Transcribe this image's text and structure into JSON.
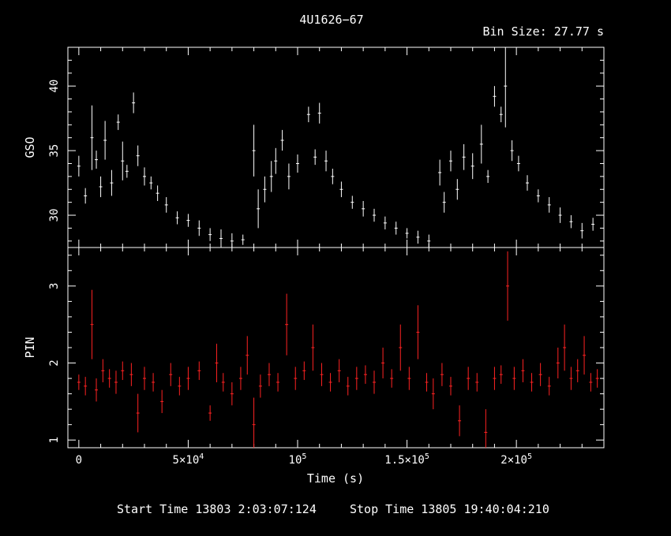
{
  "chart_data": {
    "type": "scatter",
    "title": "4U1626−67",
    "bin_size": "Bin Size: 27.77 s",
    "xlabel": "Time (s)",
    "xlim": [
      -5000,
      240000
    ],
    "x_ticks": [
      {
        "value": 0,
        "label": "0",
        "exp": ""
      },
      {
        "value": 50000,
        "label": "5×10",
        "exp": "4"
      },
      {
        "value": 100000,
        "label": "10",
        "exp": "5"
      },
      {
        "value": 150000,
        "label": "1.5×10",
        "exp": "5"
      },
      {
        "value": 200000,
        "label": "2×10",
        "exp": "5"
      }
    ],
    "footer": {
      "start": "Start Time 13803  2:03:07:124",
      "stop": "Stop Time 13805 19:40:04:210"
    },
    "panels": [
      {
        "name": "gso",
        "ylabel": "GSO",
        "ylim": [
          27.5,
          43.0
        ],
        "yticks": [
          30,
          35,
          40
        ],
        "color": "#ffffff",
        "series": [
          {
            "x": 0,
            "y": 33.8,
            "err": 0.8
          },
          {
            "x": 3000,
            "y": 31.5,
            "err": 0.6
          },
          {
            "x": 6000,
            "y": 36.0,
            "err": 2.5
          },
          {
            "x": 8000,
            "y": 34.3,
            "err": 0.7
          },
          {
            "x": 10000,
            "y": 32.2,
            "err": 0.8
          },
          {
            "x": 12000,
            "y": 35.8,
            "err": 1.5
          },
          {
            "x": 15000,
            "y": 32.5,
            "err": 1.0
          },
          {
            "x": 18000,
            "y": 37.2,
            "err": 0.6
          },
          {
            "x": 20000,
            "y": 34.2,
            "err": 1.5
          },
          {
            "x": 22000,
            "y": 33.4,
            "err": 0.5
          },
          {
            "x": 25000,
            "y": 38.7,
            "err": 0.8
          },
          {
            "x": 27000,
            "y": 34.6,
            "err": 0.8
          },
          {
            "x": 30000,
            "y": 33.0,
            "err": 0.7
          },
          {
            "x": 33000,
            "y": 32.5,
            "err": 0.5
          },
          {
            "x": 36000,
            "y": 31.7,
            "err": 0.6
          },
          {
            "x": 40000,
            "y": 30.8,
            "err": 0.6
          },
          {
            "x": 45000,
            "y": 29.8,
            "err": 0.5
          },
          {
            "x": 50000,
            "y": 29.6,
            "err": 0.5
          },
          {
            "x": 55000,
            "y": 29.0,
            "err": 0.6
          },
          {
            "x": 60000,
            "y": 28.5,
            "err": 0.5
          },
          {
            "x": 65000,
            "y": 28.2,
            "err": 0.7
          },
          {
            "x": 70000,
            "y": 28.0,
            "err": 0.6
          },
          {
            "x": 75000,
            "y": 28.1,
            "err": 0.4
          },
          {
            "x": 80000,
            "y": 35.0,
            "err": 2.0
          },
          {
            "x": 82000,
            "y": 30.5,
            "err": 1.5
          },
          {
            "x": 85000,
            "y": 32.0,
            "err": 1.0
          },
          {
            "x": 88000,
            "y": 33.0,
            "err": 1.2
          },
          {
            "x": 90000,
            "y": 34.2,
            "err": 1.0
          },
          {
            "x": 93000,
            "y": 35.8,
            "err": 0.8
          },
          {
            "x": 96000,
            "y": 33.0,
            "err": 1.0
          },
          {
            "x": 100000,
            "y": 34.0,
            "err": 0.7
          },
          {
            "x": 105000,
            "y": 37.8,
            "err": 0.6
          },
          {
            "x": 108000,
            "y": 34.5,
            "err": 0.6
          },
          {
            "x": 110000,
            "y": 37.9,
            "err": 0.8
          },
          {
            "x": 113000,
            "y": 34.2,
            "err": 0.8
          },
          {
            "x": 116000,
            "y": 33.0,
            "err": 0.6
          },
          {
            "x": 120000,
            "y": 32.0,
            "err": 0.6
          },
          {
            "x": 125000,
            "y": 31.0,
            "err": 0.5
          },
          {
            "x": 130000,
            "y": 30.5,
            "err": 0.6
          },
          {
            "x": 135000,
            "y": 30.0,
            "err": 0.5
          },
          {
            "x": 140000,
            "y": 29.4,
            "err": 0.5
          },
          {
            "x": 145000,
            "y": 29.0,
            "err": 0.5
          },
          {
            "x": 150000,
            "y": 28.6,
            "err": 0.4
          },
          {
            "x": 155000,
            "y": 28.3,
            "err": 0.5
          },
          {
            "x": 160000,
            "y": 28.0,
            "err": 0.5
          },
          {
            "x": 165000,
            "y": 33.3,
            "err": 1.0
          },
          {
            "x": 167000,
            "y": 31.0,
            "err": 0.8
          },
          {
            "x": 170000,
            "y": 34.2,
            "err": 0.8
          },
          {
            "x": 173000,
            "y": 32.0,
            "err": 0.8
          },
          {
            "x": 176000,
            "y": 34.5,
            "err": 1.0
          },
          {
            "x": 180000,
            "y": 33.8,
            "err": 1.0
          },
          {
            "x": 184000,
            "y": 35.5,
            "err": 1.5
          },
          {
            "x": 187000,
            "y": 33.0,
            "err": 0.5
          },
          {
            "x": 190000,
            "y": 39.2,
            "err": 0.8
          },
          {
            "x": 193000,
            "y": 37.8,
            "err": 0.6
          },
          {
            "x": 195000,
            "y": 40.0,
            "err": 3.2
          },
          {
            "x": 198000,
            "y": 35.0,
            "err": 0.8
          },
          {
            "x": 201000,
            "y": 34.0,
            "err": 0.6
          },
          {
            "x": 205000,
            "y": 32.5,
            "err": 0.6
          },
          {
            "x": 210000,
            "y": 31.5,
            "err": 0.5
          },
          {
            "x": 215000,
            "y": 30.8,
            "err": 0.6
          },
          {
            "x": 220000,
            "y": 30.0,
            "err": 0.6
          },
          {
            "x": 225000,
            "y": 29.5,
            "err": 0.5
          },
          {
            "x": 230000,
            "y": 28.8,
            "err": 0.6
          },
          {
            "x": 235000,
            "y": 29.3,
            "err": 0.5
          }
        ]
      },
      {
        "name": "pin",
        "ylabel": "PIN",
        "ylim": [
          0.9,
          3.5
        ],
        "yticks": [
          1,
          2,
          3
        ],
        "color": "#ff2222",
        "series": [
          {
            "x": 0,
            "y": 1.75,
            "err": 0.1
          },
          {
            "x": 3000,
            "y": 1.7,
            "err": 0.12
          },
          {
            "x": 6000,
            "y": 2.5,
            "err": 0.45
          },
          {
            "x": 8000,
            "y": 1.65,
            "err": 0.15
          },
          {
            "x": 11000,
            "y": 1.9,
            "err": 0.15
          },
          {
            "x": 14000,
            "y": 1.8,
            "err": 0.12
          },
          {
            "x": 17000,
            "y": 1.75,
            "err": 0.15
          },
          {
            "x": 20000,
            "y": 1.9,
            "err": 0.12
          },
          {
            "x": 24000,
            "y": 1.85,
            "err": 0.15
          },
          {
            "x": 27000,
            "y": 1.35,
            "err": 0.25
          },
          {
            "x": 30000,
            "y": 1.8,
            "err": 0.15
          },
          {
            "x": 34000,
            "y": 1.75,
            "err": 0.12
          },
          {
            "x": 38000,
            "y": 1.5,
            "err": 0.15
          },
          {
            "x": 42000,
            "y": 1.85,
            "err": 0.15
          },
          {
            "x": 46000,
            "y": 1.7,
            "err": 0.12
          },
          {
            "x": 50000,
            "y": 1.8,
            "err": 0.15
          },
          {
            "x": 55000,
            "y": 1.9,
            "err": 0.12
          },
          {
            "x": 60000,
            "y": 1.35,
            "err": 0.1
          },
          {
            "x": 63000,
            "y": 2.0,
            "err": 0.25
          },
          {
            "x": 66000,
            "y": 1.75,
            "err": 0.12
          },
          {
            "x": 70000,
            "y": 1.6,
            "err": 0.15
          },
          {
            "x": 74000,
            "y": 1.8,
            "err": 0.15
          },
          {
            "x": 77000,
            "y": 2.1,
            "err": 0.25
          },
          {
            "x": 80000,
            "y": 1.2,
            "err": 0.35
          },
          {
            "x": 83000,
            "y": 1.7,
            "err": 0.15
          },
          {
            "x": 87000,
            "y": 1.85,
            "err": 0.15
          },
          {
            "x": 91000,
            "y": 1.75,
            "err": 0.12
          },
          {
            "x": 95000,
            "y": 2.5,
            "err": 0.4
          },
          {
            "x": 99000,
            "y": 1.8,
            "err": 0.15
          },
          {
            "x": 103000,
            "y": 1.9,
            "err": 0.12
          },
          {
            "x": 107000,
            "y": 2.2,
            "err": 0.3
          },
          {
            "x": 111000,
            "y": 1.85,
            "err": 0.15
          },
          {
            "x": 115000,
            "y": 1.75,
            "err": 0.12
          },
          {
            "x": 119000,
            "y": 1.9,
            "err": 0.15
          },
          {
            "x": 123000,
            "y": 1.7,
            "err": 0.12
          },
          {
            "x": 127000,
            "y": 1.8,
            "err": 0.15
          },
          {
            "x": 131000,
            "y": 1.85,
            "err": 0.12
          },
          {
            "x": 135000,
            "y": 1.75,
            "err": 0.15
          },
          {
            "x": 139000,
            "y": 2.0,
            "err": 0.2
          },
          {
            "x": 143000,
            "y": 1.8,
            "err": 0.12
          },
          {
            "x": 147000,
            "y": 2.2,
            "err": 0.3
          },
          {
            "x": 151000,
            "y": 1.8,
            "err": 0.15
          },
          {
            "x": 155000,
            "y": 2.4,
            "err": 0.35
          },
          {
            "x": 159000,
            "y": 1.75,
            "err": 0.12
          },
          {
            "x": 162000,
            "y": 1.6,
            "err": 0.2
          },
          {
            "x": 166000,
            "y": 1.85,
            "err": 0.15
          },
          {
            "x": 170000,
            "y": 1.7,
            "err": 0.12
          },
          {
            "x": 174000,
            "y": 1.25,
            "err": 0.2
          },
          {
            "x": 178000,
            "y": 1.8,
            "err": 0.15
          },
          {
            "x": 182000,
            "y": 1.75,
            "err": 0.12
          },
          {
            "x": 186000,
            "y": 1.1,
            "err": 0.3
          },
          {
            "x": 190000,
            "y": 1.8,
            "err": 0.15
          },
          {
            "x": 193000,
            "y": 1.85,
            "err": 0.12
          },
          {
            "x": 196000,
            "y": 3.0,
            "err": 0.45
          },
          {
            "x": 199000,
            "y": 1.8,
            "err": 0.15
          },
          {
            "x": 203000,
            "y": 1.9,
            "err": 0.15
          },
          {
            "x": 207000,
            "y": 1.75,
            "err": 0.12
          },
          {
            "x": 211000,
            "y": 1.85,
            "err": 0.15
          },
          {
            "x": 215000,
            "y": 1.7,
            "err": 0.12
          },
          {
            "x": 219000,
            "y": 2.0,
            "err": 0.2
          },
          {
            "x": 222000,
            "y": 2.2,
            "err": 0.3
          },
          {
            "x": 225000,
            "y": 1.8,
            "err": 0.15
          },
          {
            "x": 228000,
            "y": 1.9,
            "err": 0.15
          },
          {
            "x": 231000,
            "y": 2.1,
            "err": 0.25
          },
          {
            "x": 234000,
            "y": 1.75,
            "err": 0.12
          },
          {
            "x": 237000,
            "y": 1.8,
            "err": 0.12
          }
        ]
      }
    ]
  }
}
